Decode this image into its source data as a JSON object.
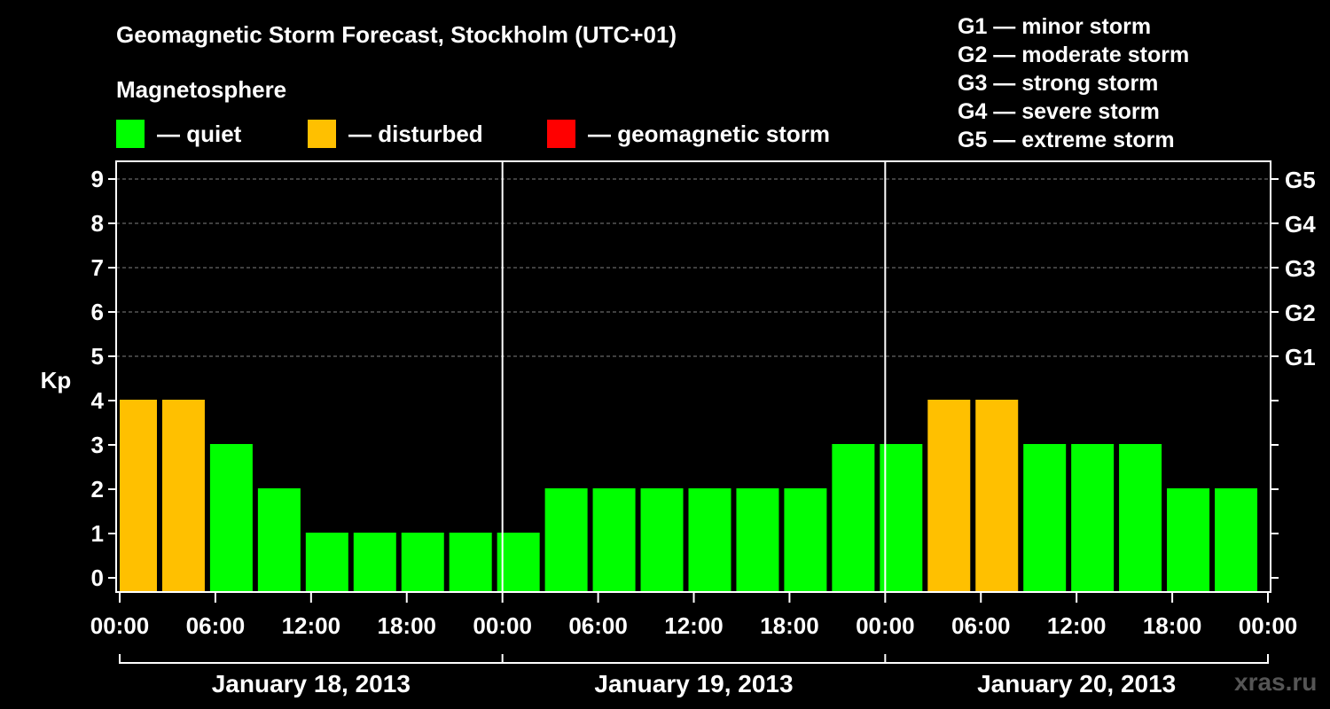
{
  "chart_data": {
    "type": "bar",
    "title": "Geomagnetic Storm Forecast, Stockholm (UTC+01)",
    "ylabel": "Kp",
    "ylim": [
      0,
      9.5
    ],
    "yticks": [
      "0",
      "1",
      "2",
      "3",
      "4",
      "5",
      "6",
      "7",
      "8",
      "9"
    ],
    "right_axis_labels": [
      {
        "value": 5,
        "label": "G1"
      },
      {
        "value": 6,
        "label": "G2"
      },
      {
        "value": 7,
        "label": "G3"
      },
      {
        "value": 8,
        "label": "G4"
      },
      {
        "value": 9,
        "label": "G5"
      }
    ],
    "x_tick_labels": [
      "00:00",
      "06:00",
      "12:00",
      "18:00",
      "00:00",
      "06:00",
      "12:00",
      "18:00",
      "00:00",
      "06:00",
      "12:00",
      "18:00",
      "00:00"
    ],
    "days": [
      "January 18, 2013",
      "January 19, 2013",
      "January 20, 2013"
    ],
    "bar_hours": [
      1,
      4,
      7,
      10,
      13,
      16,
      19,
      22,
      25,
      28,
      31,
      34,
      37,
      40,
      43,
      46,
      49,
      52,
      55,
      58,
      61,
      64,
      67,
      70
    ],
    "values": [
      4,
      4,
      3,
      2,
      1,
      1,
      1,
      1,
      1,
      2,
      2,
      2,
      2,
      2,
      2,
      3,
      3,
      4,
      4,
      3,
      3,
      3,
      2,
      2
    ],
    "grid": true,
    "colors": {
      "quiet": "#00ff00",
      "disturbed": "#ffc000",
      "storm": "#ff0000",
      "grid": "#808080",
      "axis": "#ffffff"
    }
  },
  "legend": {
    "title": "Magnetosphere",
    "items": [
      {
        "label": "— quiet",
        "color": "#00ff00"
      },
      {
        "label": "— disturbed",
        "color": "#ffc000"
      },
      {
        "label": "— geomagnetic storm",
        "color": "#ff0000"
      }
    ]
  },
  "gscale": [
    "G1 — minor storm",
    "G2 — moderate storm",
    "G3 — strong storm",
    "G4 — severe storm",
    "G5 — extreme storm"
  ],
  "watermark": "xras.ru"
}
